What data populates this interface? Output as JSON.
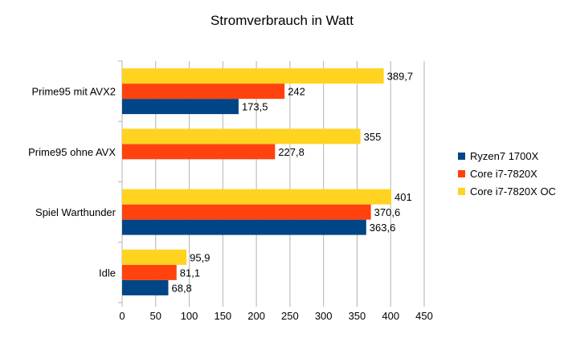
{
  "chart_data": {
    "type": "bar",
    "orientation": "horizontal",
    "title": "Stromverbrauch in Watt",
    "categories": [
      "Prime95 mit AVX2",
      "Prime95 ohne AVX",
      "Spiel Warthunder",
      "Idle"
    ],
    "series": [
      {
        "name": "Ryzen7 1700X",
        "color": "#004586",
        "values": [
          173.5,
          null,
          363.6,
          68.8
        ],
        "labels": [
          "173,5",
          "",
          "363,6",
          "68,8"
        ]
      },
      {
        "name": "Core i7-7820X",
        "color": "#ff420e",
        "values": [
          242,
          227.8,
          370.6,
          81.1
        ],
        "labels": [
          "242",
          "227,8",
          "370,6",
          "81,1"
        ]
      },
      {
        "name": "Core i7-7820X OC",
        "color": "#ffd320",
        "values": [
          389.7,
          355,
          401,
          95.9
        ],
        "labels": [
          "389,7",
          "355",
          "401",
          "95,9"
        ]
      }
    ],
    "xlim": [
      0,
      450
    ],
    "xticks": [
      "0",
      "50",
      "100",
      "150",
      "200",
      "250",
      "300",
      "350",
      "400",
      "450"
    ],
    "xlabel": "",
    "ylabel": "",
    "grid": true,
    "legend_position": "right"
  }
}
